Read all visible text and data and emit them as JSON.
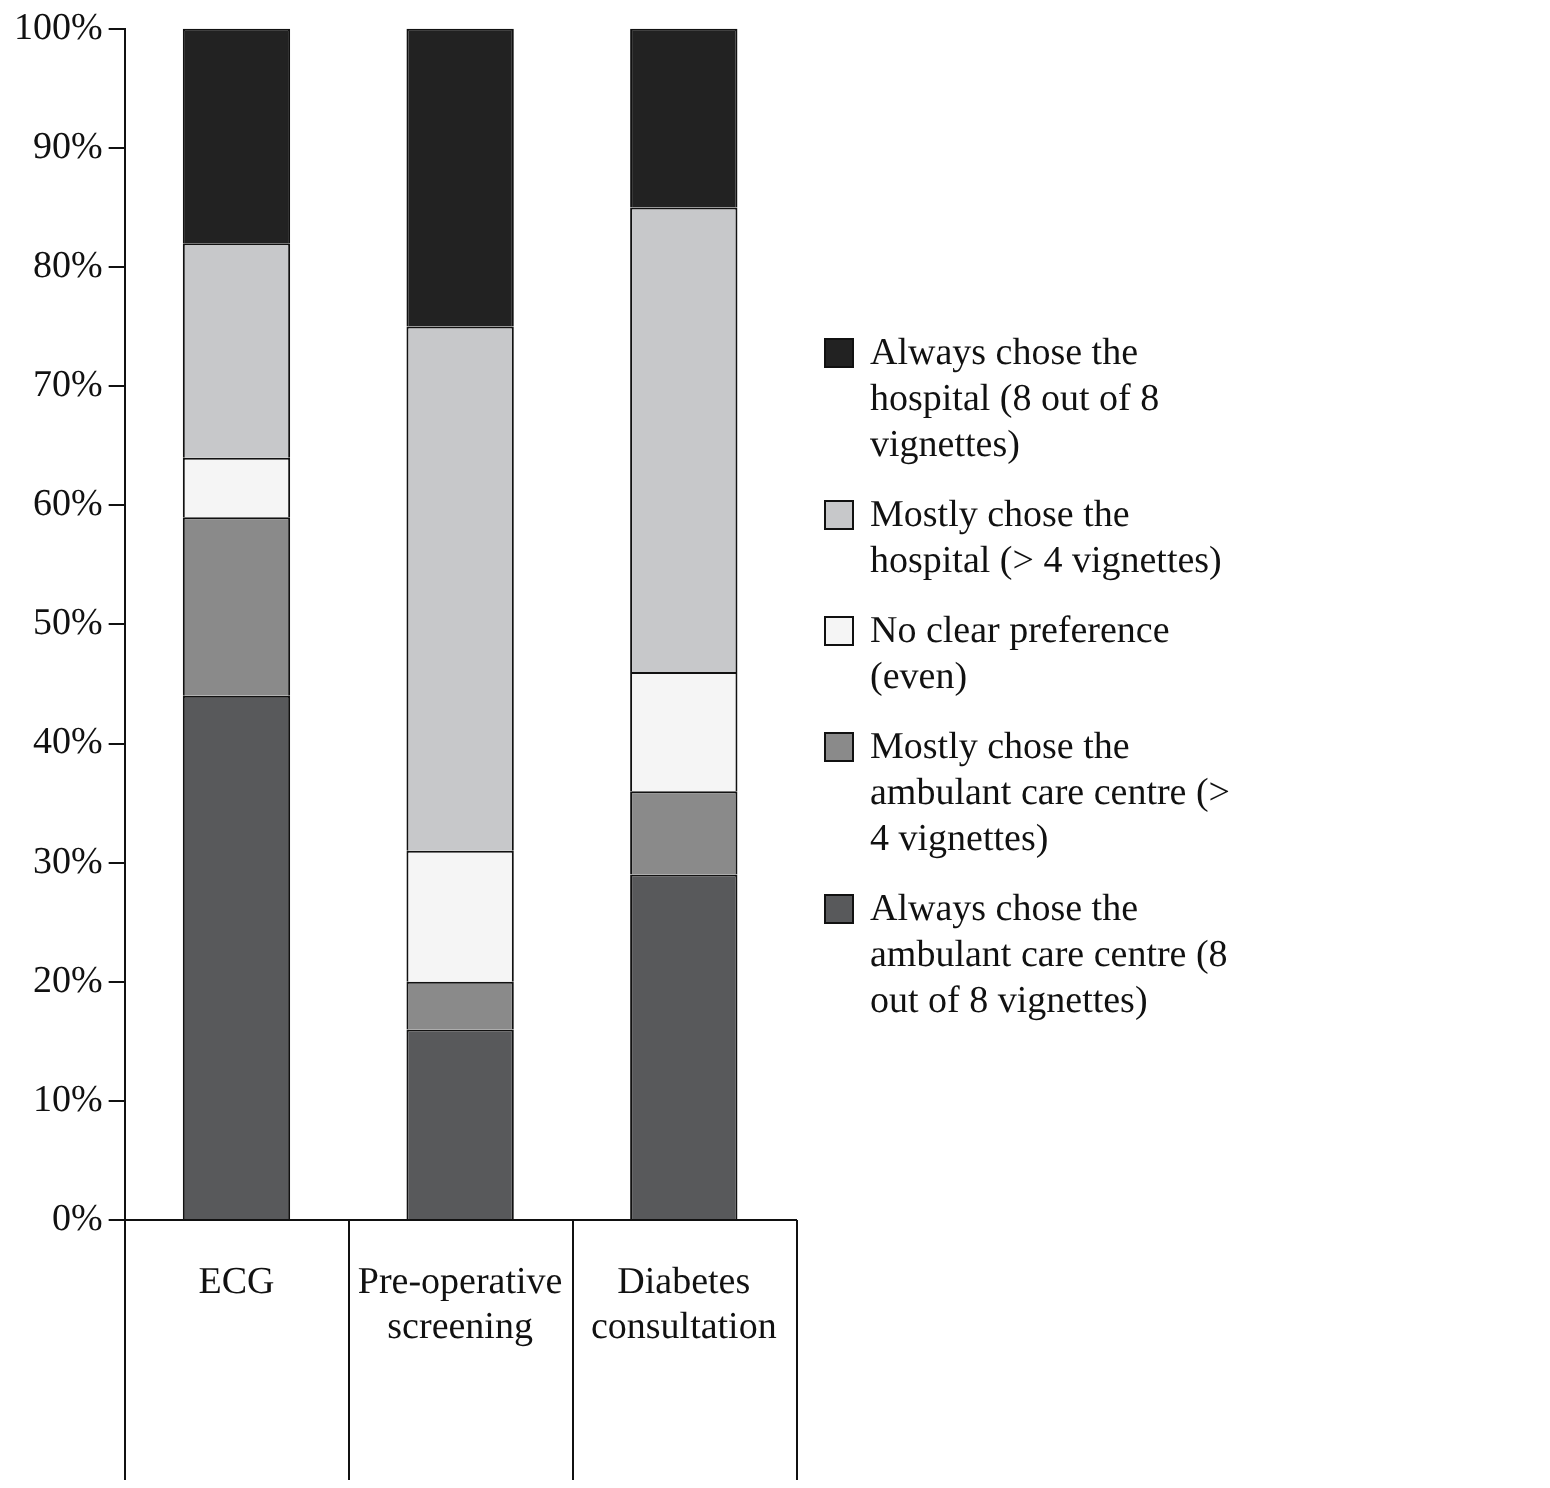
{
  "chart_data": {
    "type": "bar",
    "stacked": true,
    "categories": [
      "ECG",
      "Pre-operative screening",
      "Diabetes consultation"
    ],
    "series": [
      {
        "name": "Always chose the ambulant care centre (8 out of 8 vignettes)",
        "color": "#58595b",
        "values": [
          44,
          16,
          29
        ]
      },
      {
        "name": "Mostly chose the ambulant care centre (> 4 vignettes)",
        "color": "#8a8a8a",
        "values": [
          15,
          4,
          7
        ]
      },
      {
        "name": "No clear preference (even)",
        "color": "#f5f5f5",
        "values": [
          5,
          11,
          10
        ]
      },
      {
        "name": "Mostly chose the hospital (> 4 vignettes)",
        "color": "#c7c8ca",
        "values": [
          18,
          44,
          39
        ]
      },
      {
        "name": "Always chose the hospital (8 out of 8 vignettes)",
        "color": "#222222",
        "values": [
          18,
          25,
          15
        ]
      }
    ],
    "ylim": [
      0,
      100
    ],
    "yticks": [
      {
        "value": 0,
        "label": "0%"
      },
      {
        "value": 10,
        "label": "10%"
      },
      {
        "value": 20,
        "label": "20%"
      },
      {
        "value": 30,
        "label": "30%"
      },
      {
        "value": 40,
        "label": "40%"
      },
      {
        "value": 50,
        "label": "50%"
      },
      {
        "value": 60,
        "label": "60%"
      },
      {
        "value": 70,
        "label": "70%"
      },
      {
        "value": 80,
        "label": "80%"
      },
      {
        "value": 90,
        "label": "90%"
      },
      {
        "value": 100,
        "label": "100%"
      }
    ],
    "grid": false,
    "legend": "right"
  }
}
